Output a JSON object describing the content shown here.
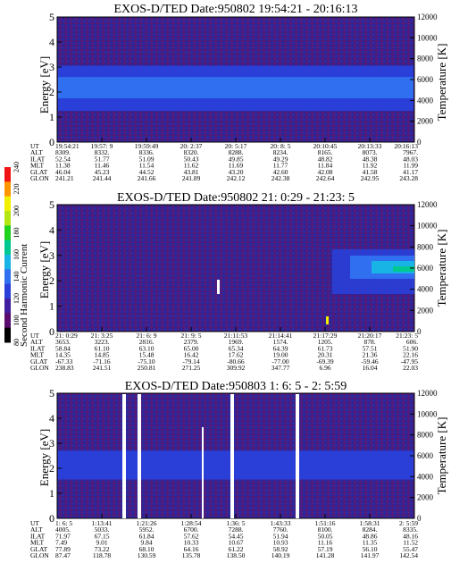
{
  "colorbar": {
    "label": "Second Harmonic Current",
    "ticks": [
      "80",
      "100",
      "120",
      "140",
      "160",
      "180",
      "200",
      "220",
      "240"
    ],
    "colors": [
      "#000000",
      "#5a0b6e",
      "#3f1fa0",
      "#2a3fd8",
      "#2f6ff0",
      "#19b4e6",
      "#00c890",
      "#1ed21e",
      "#b4e614",
      "#f0f000",
      "#ff9600",
      "#f01414"
    ]
  },
  "chart_data": [
    {
      "type": "heatmap",
      "title": "EXOS-D/TED   Date:950802  19:54:21 - 20:16:13",
      "ylabel": "Energy [eV]",
      "y2label": "Temperature [K]",
      "ylim": [
        0,
        5
      ],
      "y_ticks": [
        "0",
        "1",
        "2",
        "3",
        "4",
        "5"
      ],
      "y2lim": [
        0,
        12000
      ],
      "y2_ticks": [
        "0",
        "2000",
        "4000",
        "6000",
        "8000",
        "10000",
        "12000"
      ],
      "bands": [
        {
          "from": 1.25,
          "to": 3.05,
          "level": "mid"
        },
        {
          "from": 1.75,
          "to": 2.6,
          "level": "high"
        }
      ],
      "row_labels": [
        "UT",
        "ALT",
        "ILAT",
        "MLT",
        "GLAT",
        "GLON"
      ],
      "columns": [
        [
          "19:54:21",
          "8309.",
          "52.54",
          "11.38",
          "46.04",
          "241.21"
        ],
        [
          "19:57: 9",
          "8332.",
          "51.77",
          "11.46",
          "45.23",
          "241.44"
        ],
        [
          "19:59:49",
          "8336.",
          "51.09",
          "11.54",
          "44.52",
          "241.66"
        ],
        [
          "20: 2:37",
          "8320.",
          "50.43",
          "11.62",
          "43.81",
          "241.89"
        ],
        [
          "20: 5:17",
          "8288.",
          "49.85",
          "11.69",
          "43.20",
          "242.12"
        ],
        [
          "20: 8: 5",
          "8234.",
          "49.29",
          "11.77",
          "42.60",
          "242.38"
        ],
        [
          "20:10:45",
          "8165.",
          "48.82",
          "11.84",
          "42.08",
          "242.64"
        ],
        [
          "20:13:33",
          "8073.",
          "48.38",
          "11.92",
          "41.58",
          "242.95"
        ],
        [
          "20:16:13",
          "7967.",
          "48.03",
          "11.99",
          "41.17",
          "243.28"
        ]
      ]
    },
    {
      "type": "heatmap",
      "title": "EXOS-D/TED   Date:950802  21: 0:29 - 21:23: 5",
      "ylabel": "Energy [eV]",
      "y2label": "Temperature [K]",
      "ylim": [
        0,
        5
      ],
      "y_ticks": [
        "0",
        "1",
        "2",
        "3",
        "4",
        "5"
      ],
      "y2lim": [
        0,
        12000
      ],
      "y2_ticks": [
        "0",
        "2000",
        "4000",
        "6000",
        "8000",
        "10000",
        "12000"
      ],
      "bands": [],
      "row_labels": [
        "UT",
        "ALT",
        "ILAT",
        "MLT",
        "GLAT",
        "GLON"
      ],
      "columns": [
        [
          "21: 0:29",
          "3653.",
          "58.84",
          "14.35",
          "-67.33",
          "238.83"
        ],
        [
          "21: 3:25",
          "3223.",
          "61.10",
          "14.85",
          "-71.16",
          "241.51"
        ],
        [
          "21: 6: 9",
          "2816.",
          "63.10",
          "15.48",
          "-75.10",
          "250.81"
        ],
        [
          "21: 9: 5",
          "2379.",
          "65.00",
          "16.42",
          "-79.14",
          "271.25"
        ],
        [
          "21:11:53",
          "1969.",
          "65.34",
          "17.62",
          "-80.66",
          "309.92"
        ],
        [
          "21:14:41",
          "1574.",
          "64.39",
          "19.00",
          "-77.00",
          "347.77"
        ],
        [
          "21:17:29",
          "1205.",
          "61.73",
          "20.31",
          "-69.39",
          "6.96"
        ],
        [
          "21:20:17",
          "878.",
          "57.51",
          "21.36",
          "-59.46",
          "16.04"
        ],
        [
          "21:23: 5",
          "606.",
          "51.90",
          "22.16",
          "-47.95",
          "22.03"
        ]
      ]
    },
    {
      "type": "heatmap",
      "title": "EXOS-D/TED   Date:950803  1: 6: 5 - 2: 5:59",
      "ylabel": "Energy [eV]",
      "y2label": "Temperature [K]",
      "ylim": [
        0,
        5
      ],
      "y_ticks": [
        "0",
        "1",
        "2",
        "3",
        "4",
        "5"
      ],
      "y2lim": [
        0,
        12000
      ],
      "y2_ticks": [
        "0",
        "2000",
        "4000",
        "6000",
        "8000",
        "10000",
        "12000"
      ],
      "bands": [
        {
          "from": 1.55,
          "to": 2.7,
          "level": "mid"
        }
      ],
      "row_labels": [
        "UT",
        "ALT",
        "ILAT",
        "MLT",
        "GLAT",
        "GLON"
      ],
      "columns": [
        [
          "1: 6: 5",
          "4005.",
          "71.97",
          "7.49",
          "77.89",
          "87.47"
        ],
        [
          "1:13:41",
          "5033.",
          "67.15",
          "9.01",
          "73.22",
          "118.78"
        ],
        [
          "1:21:26",
          "5952.",
          "61.84",
          "9.84",
          "68.10",
          "130.59"
        ],
        [
          "1:28:54",
          "6700.",
          "57.62",
          "10.33",
          "64.16",
          "135.78"
        ],
        [
          "1:36: 5",
          "7288.",
          "54.45",
          "10.67",
          "61.22",
          "138.50"
        ],
        [
          "1:43:33",
          "7760.",
          "51.94",
          "10.93",
          "58.92",
          "140.19"
        ],
        [
          "1:51:16",
          "8100.",
          "50.05",
          "11.16",
          "57.19",
          "141.28"
        ],
        [
          "1:58:31",
          "8284.",
          "48.86",
          "11.35",
          "56.10",
          "141.97"
        ],
        [
          "2: 5:59",
          "8335.",
          "48.16",
          "11.52",
          "55.47",
          "142.54"
        ]
      ]
    }
  ]
}
